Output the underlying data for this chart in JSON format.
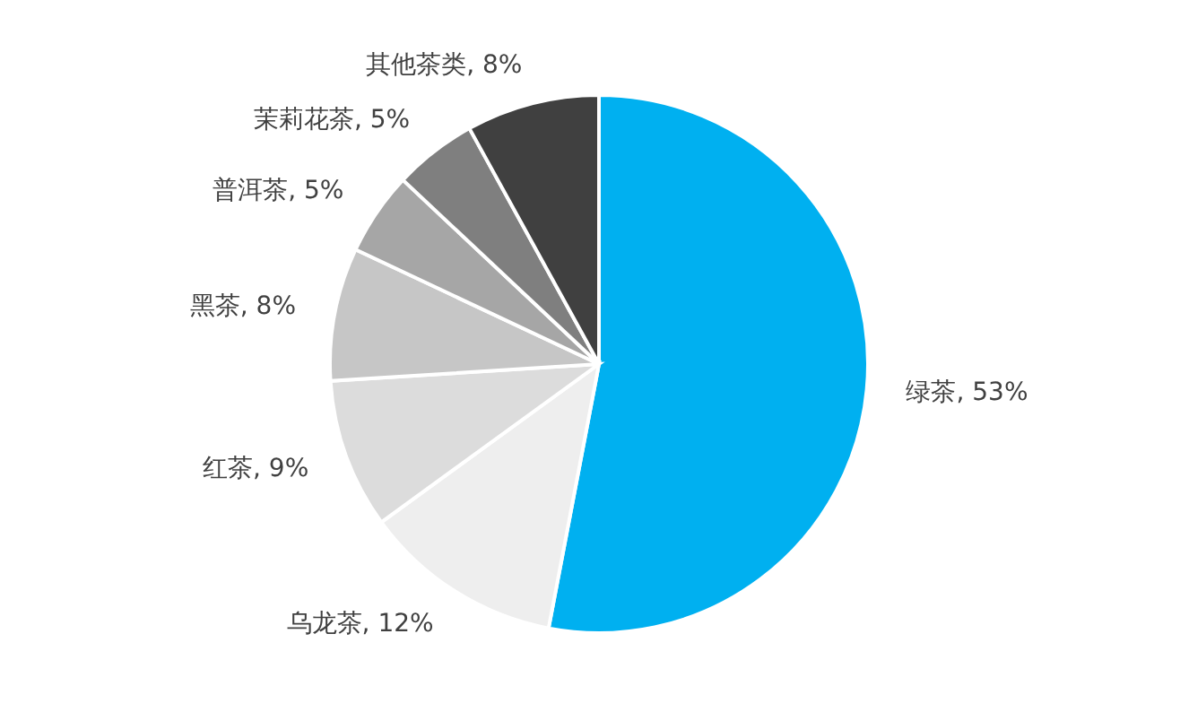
{
  "chart_data": {
    "type": "pie",
    "categories": [
      "绿茶",
      "乌龙茶",
      "红茶",
      "黑茶",
      "普洱茶",
      "茉莉花茶",
      "其他茶类"
    ],
    "values": [
      53,
      12,
      9,
      8,
      5,
      5,
      8
    ],
    "value_labels": [
      "53%",
      "12%",
      "9%",
      "8%",
      "5%",
      "5%",
      "8%"
    ],
    "colors": [
      "#00b0f0",
      "#eeeeee",
      "#dcdcdc",
      "#c6c6c6",
      "#a6a6a6",
      "#7f7f7f",
      "#404040"
    ]
  }
}
